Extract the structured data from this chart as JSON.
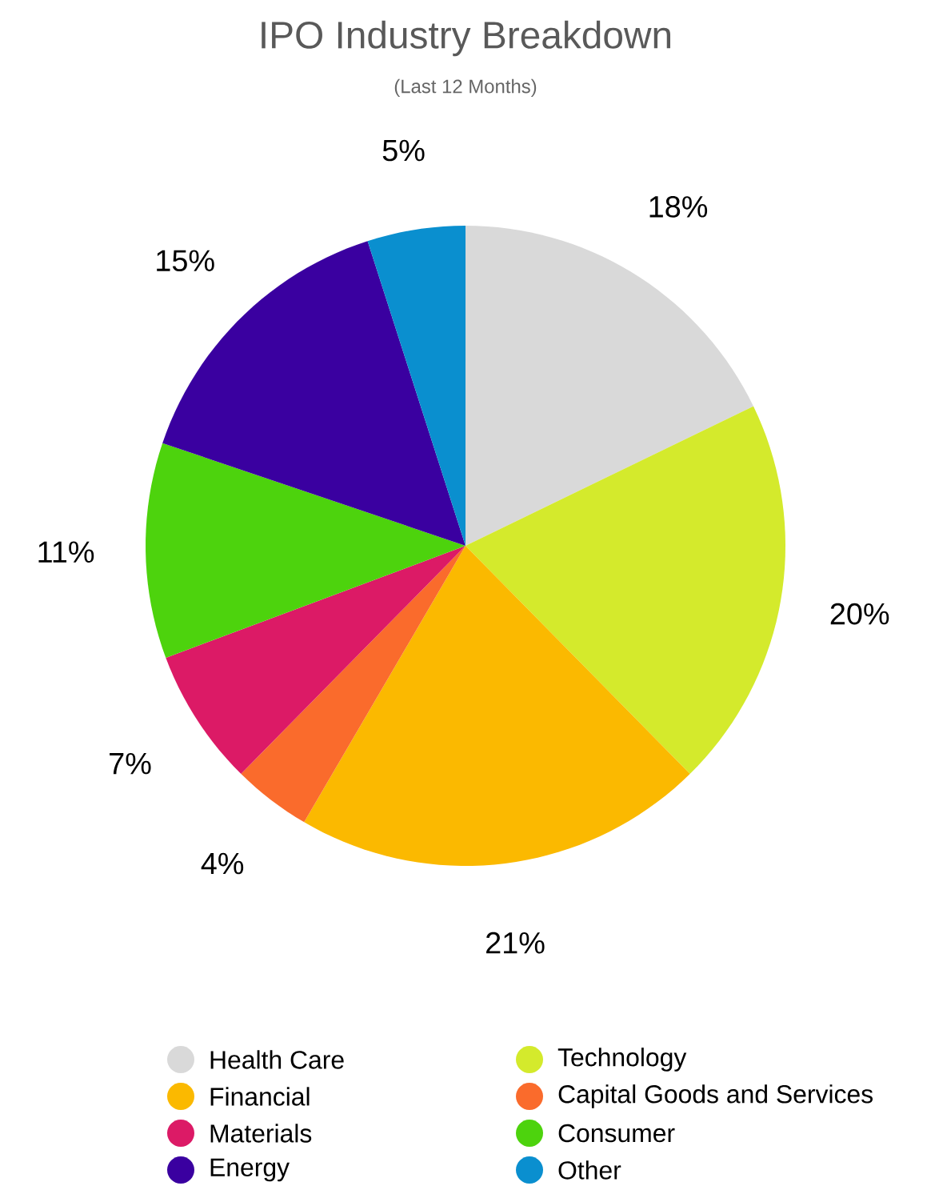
{
  "chart_data": {
    "type": "pie",
    "title": "IPO Industry Breakdown",
    "subtitle": "(Last 12 Months)",
    "categories": [
      "Health Care",
      "Technology",
      "Financial",
      "Capital Goods and Services",
      "Materials",
      "Consumer",
      "Energy",
      "Other"
    ],
    "values": [
      18,
      20,
      21,
      4,
      7,
      11,
      15,
      5
    ],
    "value_labels": [
      "18%",
      "20%",
      "21%",
      "4%",
      "7%",
      "11%",
      "15%",
      "5%"
    ],
    "colors": [
      "#d9d9d9",
      "#d4ea2c",
      "#fbb900",
      "#fa6b2c",
      "#dc1a66",
      "#4dd30d",
      "#3a00a0",
      "#0a8fcf"
    ],
    "legend": "bottom"
  }
}
